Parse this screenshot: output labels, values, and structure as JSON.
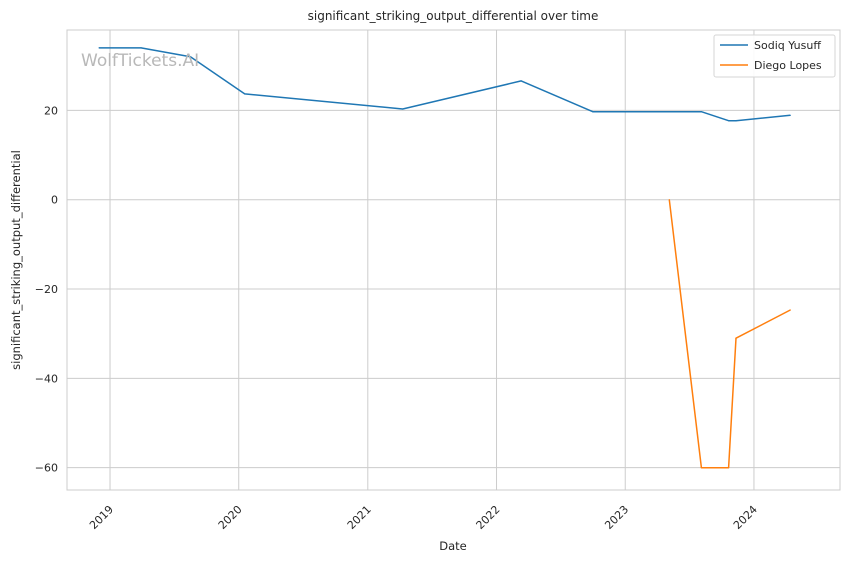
{
  "watermark": "WolfTickets.AI",
  "chart_data": {
    "type": "line",
    "title": "significant_striking_output_differential over time",
    "xlabel": "Date",
    "ylabel": "significant_striking_output_differential",
    "xlim": [
      "2018-09-01",
      "2024-09-01"
    ],
    "ylim": [
      -65,
      38
    ],
    "x_ticks": [
      "2019",
      "2020",
      "2021",
      "2022",
      "2023",
      "2024"
    ],
    "y_ticks": [
      20,
      0,
      -20,
      -40,
      -60
    ],
    "grid": true,
    "legend_position": "top-right",
    "series": [
      {
        "name": "Sodiq Yusuff",
        "color": "#1f77b4",
        "points": [
          {
            "x": "2018-12-01",
            "y": 34
          },
          {
            "x": "2019-03-30",
            "y": 34
          },
          {
            "x": "2019-08-17",
            "y": 32
          },
          {
            "x": "2020-01-18",
            "y": 23.7
          },
          {
            "x": "2021-04-10",
            "y": 20.3
          },
          {
            "x": "2022-03-12",
            "y": 26.6
          },
          {
            "x": "2022-10-01",
            "y": 19.7
          },
          {
            "x": "2023-08-05",
            "y": 19.7
          },
          {
            "x": "2023-10-21",
            "y": 17.7
          },
          {
            "x": "2023-11-11",
            "y": 17.7
          },
          {
            "x": "2024-04-13",
            "y": 18.9
          }
        ]
      },
      {
        "name": "Diego Lopes",
        "color": "#ff7f0e",
        "points": [
          {
            "x": "2023-05-06",
            "y": 0
          },
          {
            "x": "2023-08-05",
            "y": -60
          },
          {
            "x": "2023-10-21",
            "y": -60
          },
          {
            "x": "2023-11-11",
            "y": -31
          },
          {
            "x": "2024-04-13",
            "y": -24.7
          }
        ]
      }
    ]
  }
}
